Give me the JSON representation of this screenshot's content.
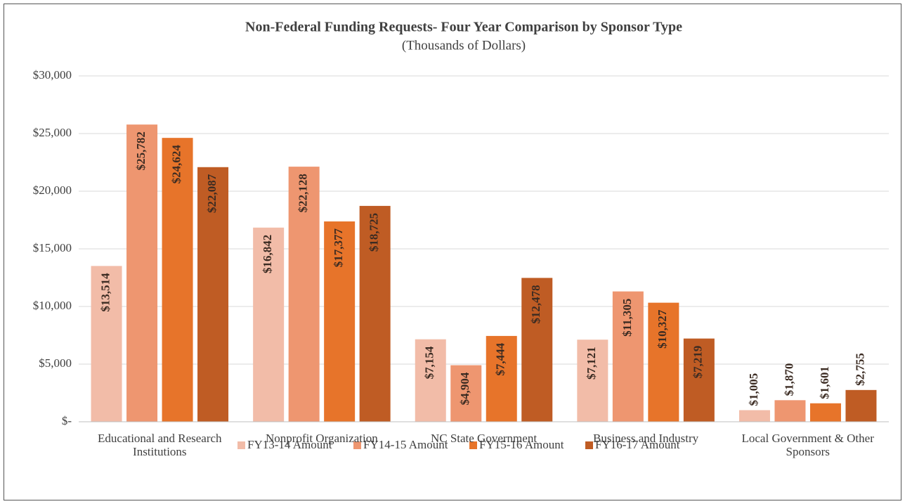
{
  "chart_data": {
    "type": "bar",
    "title": "Non-Federal Funding Requests- Four Year Comparison by Sponsor Type",
    "subtitle": "(Thousands of Dollars)",
    "categories": [
      "Educational and Research Institutions",
      "Nonprofit Organization",
      "NC State Government",
      "Business and Industry",
      "Local Government & Other Sponsors"
    ],
    "series": [
      {
        "name": "FY13-14 Amount",
        "color": "#f2bca8",
        "values": [
          13514,
          16842,
          7154,
          7121,
          1005
        ],
        "value_labels": [
          "$13,514",
          "$16,842",
          "$7,154",
          "$7,121",
          "$1,005"
        ]
      },
      {
        "name": "FY14-15 Amount",
        "color": "#ee9670",
        "values": [
          25782,
          22128,
          4904,
          11305,
          1870
        ],
        "value_labels": [
          "$25,782",
          "$22,128",
          "$4,904",
          "$11,305",
          "$1,870"
        ]
      },
      {
        "name": "FY15-16 Amount",
        "color": "#e7742a",
        "values": [
          24624,
          17377,
          7444,
          10327,
          1601
        ],
        "value_labels": [
          "$24,624",
          "$17,377",
          "$7,444",
          "$10,327",
          "$1,601"
        ]
      },
      {
        "name": "FY16-17 Amount",
        "color": "#bf5c24",
        "values": [
          22087,
          18725,
          12478,
          7219,
          2755
        ],
        "value_labels": [
          "$22,087",
          "$18,725",
          "$12,478",
          "$7,219",
          "$2,755"
        ]
      }
    ],
    "ylim": [
      0,
      30000
    ],
    "yticks": [
      {
        "value": 0,
        "label": "$-"
      },
      {
        "value": 5000,
        "label": "$5,000"
      },
      {
        "value": 10000,
        "label": "$10,000"
      },
      {
        "value": 15000,
        "label": "$15,000"
      },
      {
        "value": 20000,
        "label": "$20,000"
      },
      {
        "value": 25000,
        "label": "$25,000"
      },
      {
        "value": 30000,
        "label": "$30,000"
      }
    ],
    "grid": true,
    "legend": "bottom"
  }
}
